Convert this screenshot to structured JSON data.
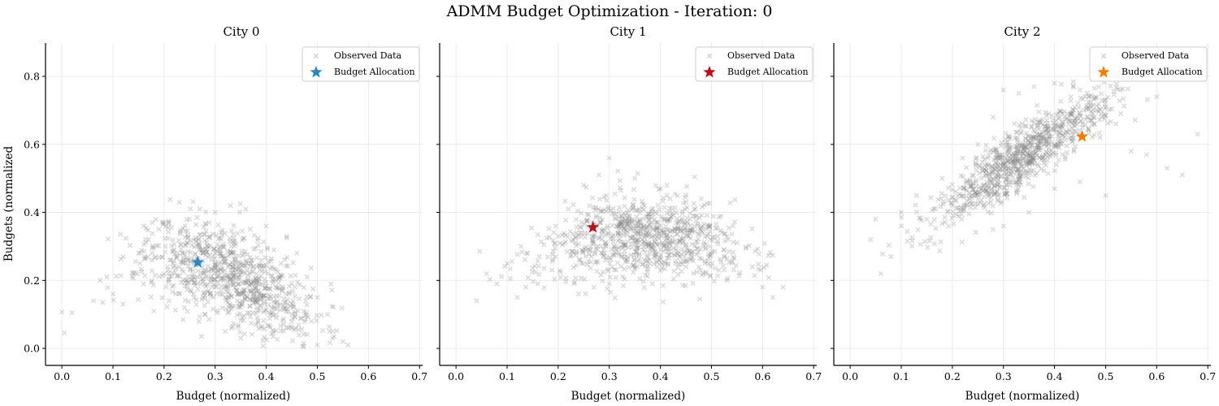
{
  "chart_data": {
    "type": "scatter",
    "title": "ADMM Budget Optimization - Iteration: 0",
    "shared_ylabel": "Budgets (normalized",
    "xlim": [
      -0.032,
      0.706
    ],
    "ylim": [
      -0.05,
      0.898
    ],
    "xticks": [
      "0.0",
      "0.1",
      "0.2",
      "0.3",
      "0.4",
      "0.5",
      "0.6",
      "0.7"
    ],
    "yticks": [
      "0.0",
      "0.2",
      "0.4",
      "0.6",
      "0.8"
    ],
    "grid": true,
    "legend_position": "top-right",
    "observed_color": "#808080",
    "panels": [
      {
        "title": "City 0",
        "xlabel": "Budget (normalized)",
        "legend": [
          "Observed Data",
          "Budget Allocation"
        ],
        "allocation_color": "#2e86c1",
        "allocation": {
          "x": 0.266,
          "y": 0.253
        },
        "cloud": {
          "n": 900,
          "center": [
            0.33,
            0.22
          ],
          "spread": [
            0.085,
            0.07
          ],
          "slope": -0.55,
          "curve": -1.6,
          "seed": 11,
          "xrange": [
            0.0,
            0.56
          ],
          "yrange": [
            0.0,
            0.44
          ]
        },
        "observed": [
          [
            0.0,
            0.107
          ],
          [
            0.005,
            0.045
          ],
          [
            0.02,
            0.105
          ],
          [
            0.062,
            0.14
          ],
          [
            0.075,
            0.2
          ],
          [
            0.08,
            0.135
          ],
          [
            0.088,
            0.21
          ],
          [
            0.1,
            0.16
          ],
          [
            0.12,
            0.13
          ],
          [
            0.15,
            0.28
          ],
          [
            0.16,
            0.36
          ],
          [
            0.17,
            0.32
          ],
          [
            0.19,
            0.35
          ],
          [
            0.2,
            0.37
          ],
          [
            0.23,
            0.43
          ],
          [
            0.25,
            0.38
          ],
          [
            0.27,
            0.41
          ],
          [
            0.3,
            0.4
          ],
          [
            0.33,
            0.42
          ],
          [
            0.36,
            0.41
          ],
          [
            0.4,
            0.36
          ],
          [
            0.44,
            0.33
          ],
          [
            0.46,
            0.28
          ],
          [
            0.48,
            0.21
          ],
          [
            0.5,
            0.15
          ],
          [
            0.52,
            0.1
          ],
          [
            0.53,
            0.05
          ],
          [
            0.55,
            0.02
          ],
          [
            0.56,
            0.01
          ],
          [
            0.5,
            0.01
          ],
          [
            0.45,
            0.06
          ],
          [
            0.42,
            0.09
          ],
          [
            0.38,
            0.07
          ],
          [
            0.35,
            0.03
          ],
          [
            0.32,
            0.05
          ],
          [
            0.28,
            0.1
          ],
          [
            0.24,
            0.12
          ],
          [
            0.21,
            0.14
          ],
          [
            0.18,
            0.11
          ]
        ]
      },
      {
        "title": "City 1",
        "xlabel": "Budget (normalized)",
        "legend": [
          "Observed Data",
          "Budget Allocation"
        ],
        "allocation_color": "#b5121b",
        "allocation": {
          "x": 0.268,
          "y": 0.356
        },
        "cloud": {
          "n": 900,
          "center": [
            0.36,
            0.33
          ],
          "spread": [
            0.1,
            0.06
          ],
          "slope": 0.0,
          "curve": -1.4,
          "seed": 23,
          "xrange": [
            0.04,
            0.64
          ],
          "yrange": [
            0.12,
            0.56
          ]
        },
        "observed": [
          [
            0.04,
            0.14
          ],
          [
            0.06,
            0.22
          ],
          [
            0.08,
            0.19
          ],
          [
            0.1,
            0.25
          ],
          [
            0.12,
            0.15
          ],
          [
            0.14,
            0.28
          ],
          [
            0.16,
            0.19
          ],
          [
            0.2,
            0.33
          ],
          [
            0.22,
            0.41
          ],
          [
            0.25,
            0.48
          ],
          [
            0.28,
            0.51
          ],
          [
            0.3,
            0.56
          ],
          [
            0.35,
            0.5
          ],
          [
            0.4,
            0.47
          ],
          [
            0.45,
            0.43
          ],
          [
            0.48,
            0.44
          ],
          [
            0.52,
            0.34
          ],
          [
            0.55,
            0.31
          ],
          [
            0.58,
            0.24
          ],
          [
            0.6,
            0.18
          ],
          [
            0.62,
            0.15
          ],
          [
            0.64,
            0.18
          ],
          [
            0.53,
            0.2
          ],
          [
            0.49,
            0.22
          ],
          [
            0.45,
            0.24
          ],
          [
            0.3,
            0.19
          ],
          [
            0.27,
            0.18
          ],
          [
            0.24,
            0.16
          ]
        ]
      },
      {
        "title": "City 2",
        "xlabel": "Budget (normalized)",
        "legend": [
          "Observed Data",
          "Budget Allocation"
        ],
        "allocation_color": "#f57c00",
        "allocation": {
          "x": 0.454,
          "y": 0.623
        },
        "cloud": {
          "n": 900,
          "center": [
            0.34,
            0.57
          ],
          "spread": [
            0.085,
            0.045
          ],
          "slope": 1.0,
          "curve": -0.3,
          "seed": 37,
          "xrange": [
            0.04,
            0.68
          ],
          "yrange": [
            0.2,
            0.8
          ]
        },
        "observed": [
          [
            0.04,
            0.32
          ],
          [
            0.05,
            0.38
          ],
          [
            0.06,
            0.22
          ],
          [
            0.08,
            0.27
          ],
          [
            0.1,
            0.36
          ],
          [
            0.1,
            0.4
          ],
          [
            0.13,
            0.45
          ],
          [
            0.15,
            0.38
          ],
          [
            0.18,
            0.5
          ],
          [
            0.2,
            0.42
          ],
          [
            0.22,
            0.56
          ],
          [
            0.25,
            0.6
          ],
          [
            0.28,
            0.68
          ],
          [
            0.3,
            0.76
          ],
          [
            0.33,
            0.75
          ],
          [
            0.36,
            0.77
          ],
          [
            0.4,
            0.78
          ],
          [
            0.45,
            0.76
          ],
          [
            0.48,
            0.74
          ],
          [
            0.5,
            0.71
          ],
          [
            0.52,
            0.66
          ],
          [
            0.55,
            0.58
          ],
          [
            0.58,
            0.57
          ],
          [
            0.6,
            0.74
          ],
          [
            0.62,
            0.53
          ],
          [
            0.65,
            0.51
          ],
          [
            0.68,
            0.63
          ],
          [
            0.5,
            0.45
          ],
          [
            0.45,
            0.49
          ],
          [
            0.4,
            0.47
          ],
          [
            0.35,
            0.4
          ],
          [
            0.28,
            0.35
          ],
          [
            0.3,
            0.36
          ]
        ]
      }
    ]
  }
}
